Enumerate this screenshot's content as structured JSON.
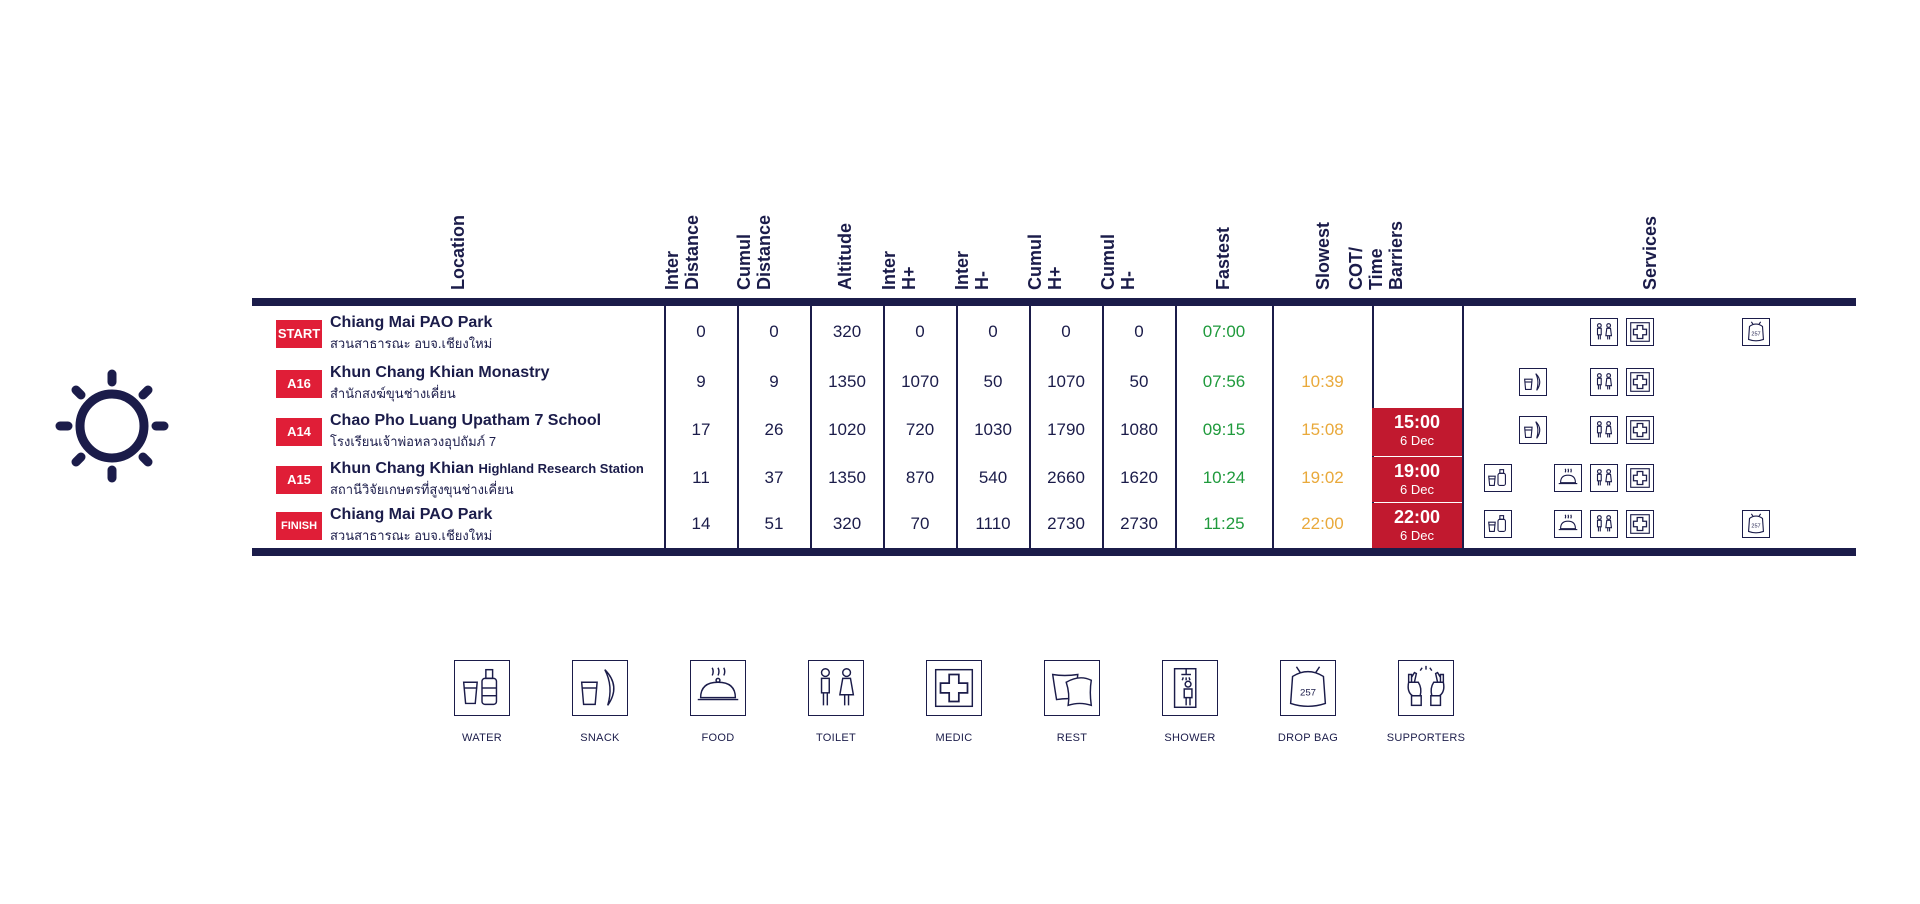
{
  "headers": {
    "location": "Location",
    "inter_distance": [
      "Inter",
      "Distance"
    ],
    "cumul_distance": [
      "Cumul",
      "Distance"
    ],
    "altitude": "Altitude",
    "inter_hplus": [
      "Inter",
      "H+"
    ],
    "inter_hminus": [
      "Inter",
      "H-"
    ],
    "cumul_hplus": [
      "Cumul",
      "H+"
    ],
    "cumul_hminus": [
      "Cumul",
      "H-"
    ],
    "fastest": "Fastest",
    "slowest": "Slowest",
    "cot": [
      "COT/",
      "Time",
      "Barriers"
    ],
    "services": "Services"
  },
  "rows": [
    {
      "badge": "START",
      "name": "Chiang Mai PAO Park",
      "name_sub": "",
      "thai": "สวนสาธารณะ อบจ.เชียงใหม่",
      "inter_dist": "0",
      "cumul_dist": "0",
      "altitude": "320",
      "inter_hp": "0",
      "inter_hm": "0",
      "cumul_hp": "0",
      "cumul_hm": "0",
      "fastest": "07:00",
      "slowest": "",
      "cot_time": "",
      "cot_date": ""
    },
    {
      "badge": "A16",
      "name": "Khun Chang Khian Monastry",
      "name_sub": "",
      "thai": "สำนักสงฆ์ขุนช่างเคี่ยน",
      "inter_dist": "9",
      "cumul_dist": "9",
      "altitude": "1350",
      "inter_hp": "1070",
      "inter_hm": "50",
      "cumul_hp": "1070",
      "cumul_hm": "50",
      "fastest": "07:56",
      "slowest": "10:39",
      "cot_time": "",
      "cot_date": ""
    },
    {
      "badge": "A14",
      "name": "Chao Pho Luang Upatham 7 School",
      "name_sub": "",
      "thai": "โรงเรียนเจ้าพ่อหลวงอุปถัมภ์ 7",
      "inter_dist": "17",
      "cumul_dist": "26",
      "altitude": "1020",
      "inter_hp": "720",
      "inter_hm": "1030",
      "cumul_hp": "1790",
      "cumul_hm": "1080",
      "fastest": "09:15",
      "slowest": "15:08",
      "cot_time": "15:00",
      "cot_date": "6 Dec"
    },
    {
      "badge": "A15",
      "name": "Khun Chang Khian",
      "name_sub": "Highland Research Station",
      "thai": "สถานีวิจัยเกษตรที่สูงขุนช่างเคี่ยน",
      "inter_dist": "11",
      "cumul_dist": "37",
      "altitude": "1350",
      "inter_hp": "870",
      "inter_hm": "540",
      "cumul_hp": "2660",
      "cumul_hm": "1620",
      "fastest": "10:24",
      "slowest": "19:02",
      "cot_time": "19:00",
      "cot_date": "6 Dec"
    },
    {
      "badge": "FINISH",
      "name": "Chiang Mai PAO Park",
      "name_sub": "",
      "thai": "สวนสาธารณะ อบจ.เชียงใหม่",
      "inter_dist": "14",
      "cumul_dist": "51",
      "altitude": "320",
      "inter_hp": "70",
      "inter_hm": "1110",
      "cumul_hp": "2730",
      "cumul_hm": "2730",
      "fastest": "11:25",
      "slowest": "22:00",
      "cot_time": "22:00",
      "cot_date": "6 Dec"
    }
  ],
  "legend": [
    "WATER",
    "SNACK",
    "FOOD",
    "TOILET",
    "MEDIC",
    "REST",
    "SHOWER",
    "DROP BAG",
    "SUPPORTERS"
  ],
  "drop_bag_number": "257",
  "colors": {
    "navy": "#1b1c4a",
    "red": "#e01e37",
    "cot_red": "#c1192f",
    "green": "#1f9a3c",
    "orange": "#e9a93b"
  }
}
